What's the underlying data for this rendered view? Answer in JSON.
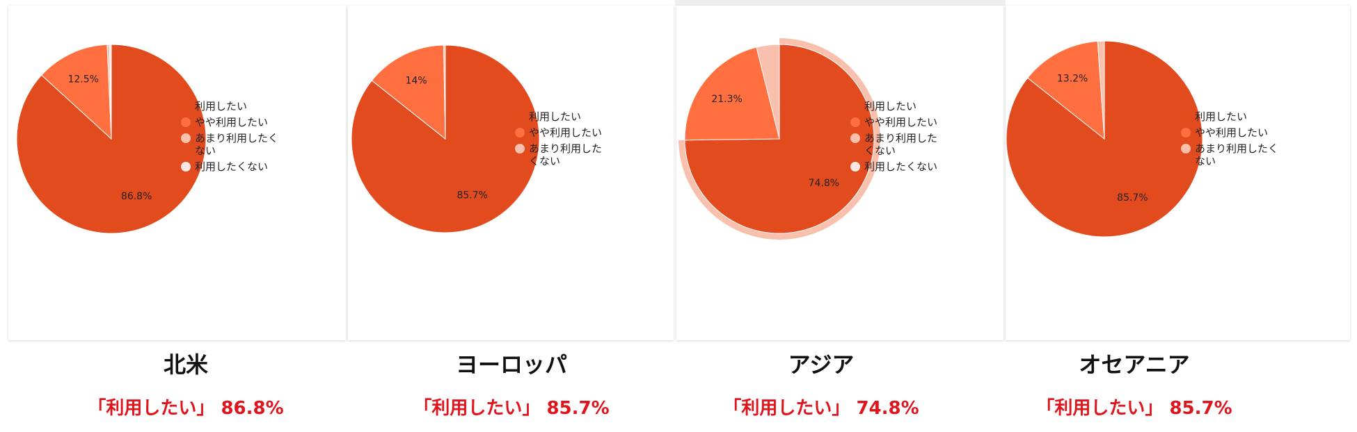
{
  "colors": {
    "use": "#e24b1d",
    "somewhat": "#ff6f40",
    "rather_not": "#f8c0ad",
    "not": "#fde8e3",
    "stat_text": "#e0141c"
  },
  "chart_data": [
    {
      "type": "pie",
      "region": "北米",
      "stat_label": "「利用したい」",
      "stat_value": "86.8%",
      "legend": [
        "利用したい",
        "やや利用したい",
        "あまり利用したく\nない",
        "利用したくない"
      ],
      "slices": [
        {
          "label": "利用したい",
          "value": 86.8,
          "display": "86.8%"
        },
        {
          "label": "やや利用したい",
          "value": 12.5,
          "display": "12.5%"
        },
        {
          "label": "あまり利用したくない",
          "value": 0.4,
          "display": ""
        },
        {
          "label": "利用したくない",
          "value": 0.3,
          "display": ""
        }
      ]
    },
    {
      "type": "pie",
      "region": "ヨーロッパ",
      "stat_label": "「利用したい」",
      "stat_value": "85.7%",
      "legend": [
        "利用したい",
        "やや利用したい",
        "あまり利用した\nくない"
      ],
      "slices": [
        {
          "label": "利用したい",
          "value": 85.7,
          "display": "85.7%"
        },
        {
          "label": "やや利用したい",
          "value": 14,
          "display": "14%"
        },
        {
          "label": "あまり利用したくない",
          "value": 0.3,
          "display": ""
        }
      ]
    },
    {
      "type": "pie",
      "region": "アジア",
      "stat_label": "「利用したい」",
      "stat_value": "74.8%",
      "legend": [
        "利用したい",
        "やや利用したい",
        "あまり利用した\nくない",
        "利用したくない"
      ],
      "slices": [
        {
          "label": "利用したい",
          "value": 74.8,
          "display": "74.8%"
        },
        {
          "label": "やや利用したい",
          "value": 21.3,
          "display": "21.3%"
        },
        {
          "label": "あまり利用したくない",
          "value": 3.9,
          "display": ""
        },
        {
          "label": "利用したくない",
          "value": 0,
          "display": ""
        }
      ],
      "highlight": "利用したい"
    },
    {
      "type": "pie",
      "region": "オセアニア",
      "stat_label": "「利用したい」",
      "stat_value": "85.7%",
      "legend": [
        "利用したい",
        "やや利用したい",
        "あまり利用したく\nない"
      ],
      "slices": [
        {
          "label": "利用したい",
          "value": 85.7,
          "display": "85.7%"
        },
        {
          "label": "やや利用したい",
          "value": 13.2,
          "display": "13.2%"
        },
        {
          "label": "あまり利用したくない",
          "value": 1.1,
          "display": ""
        }
      ]
    }
  ]
}
